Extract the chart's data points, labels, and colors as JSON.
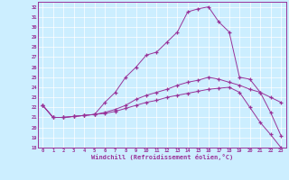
{
  "xlabel": "Windchill (Refroidissement éolien,°C)",
  "bg_color": "#cceeff",
  "line_color": "#993399",
  "grid_color": "#aaddee",
  "xlim": [
    -0.5,
    23.5
  ],
  "ylim": [
    18,
    32.5
  ],
  "xticks": [
    0,
    1,
    2,
    3,
    4,
    5,
    6,
    7,
    8,
    9,
    10,
    11,
    12,
    13,
    14,
    15,
    16,
    17,
    18,
    19,
    20,
    21,
    22,
    23
  ],
  "yticks": [
    18,
    19,
    20,
    21,
    22,
    23,
    24,
    25,
    26,
    27,
    28,
    29,
    30,
    31,
    32
  ],
  "curve1_x": [
    0,
    1,
    2,
    3,
    4,
    5,
    6,
    7,
    8,
    9,
    10,
    11,
    12,
    13,
    14,
    15,
    16,
    17,
    18,
    19,
    20,
    21,
    22,
    23
  ],
  "curve1_y": [
    22.2,
    21.0,
    21.0,
    21.1,
    21.2,
    21.3,
    22.5,
    23.5,
    25.0,
    26.0,
    27.2,
    27.5,
    28.5,
    29.5,
    31.5,
    31.8,
    32.0,
    30.5,
    29.5,
    25.0,
    24.8,
    23.5,
    23.0,
    22.5
  ],
  "curve2_x": [
    0,
    1,
    2,
    3,
    4,
    5,
    6,
    7,
    8,
    9,
    10,
    11,
    12,
    13,
    14,
    15,
    16,
    17,
    18,
    19,
    20,
    21,
    22,
    23
  ],
  "curve2_y": [
    22.2,
    21.0,
    21.0,
    21.1,
    21.2,
    21.3,
    21.5,
    21.8,
    22.2,
    22.8,
    23.2,
    23.5,
    23.8,
    24.2,
    24.5,
    24.7,
    25.0,
    24.8,
    24.5,
    24.2,
    23.8,
    23.5,
    21.5,
    19.2
  ],
  "curve3_x": [
    0,
    1,
    2,
    3,
    4,
    5,
    6,
    7,
    8,
    9,
    10,
    11,
    12,
    13,
    14,
    15,
    16,
    17,
    18,
    19,
    20,
    21,
    22,
    23
  ],
  "curve3_y": [
    22.2,
    21.0,
    21.0,
    21.1,
    21.2,
    21.3,
    21.4,
    21.6,
    21.9,
    22.2,
    22.5,
    22.7,
    23.0,
    23.2,
    23.4,
    23.6,
    23.8,
    23.9,
    24.0,
    23.5,
    22.0,
    20.5,
    19.3,
    18.0
  ]
}
